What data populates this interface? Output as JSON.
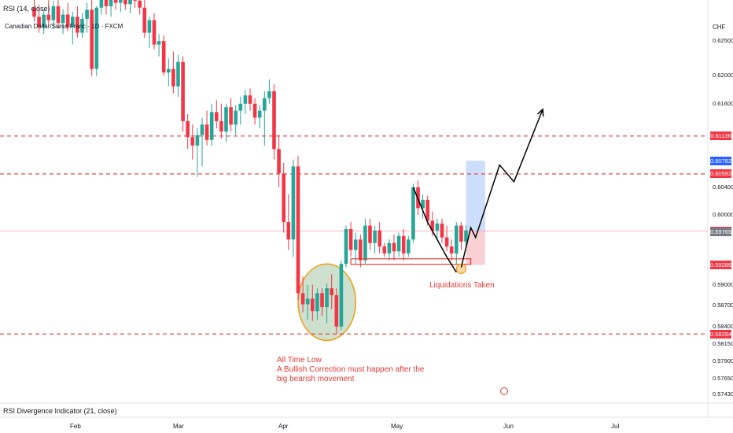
{
  "header": {
    "rsi_pane_title": "RSI (14, close)",
    "symbol_title": "Canadian Dollar/Swiss Franc · 1D · FXCM",
    "currency": "CHF",
    "divergence_pane_title": "RSI Divergence Indicator (21, close)"
  },
  "colors": {
    "up": "#26a69a",
    "down": "#f23645",
    "level_line": "#e53935",
    "target_zone": "#bcd3fb",
    "stop_zone": "#f8c5c9",
    "circle_fill": "#a5c8a6",
    "circle_stroke": "#f39c12",
    "blue_tag": "#2962ff"
  },
  "annotations": {
    "all_time_low": "All Time Low",
    "correction_line1": "A Bullish Correction must happen after the",
    "correction_line2": "big bearish movement",
    "liquidations": "Liquidations Taken"
  },
  "chart_data": {
    "type": "candlestick",
    "title": "Canadian Dollar/Swiss Franc · 1D · FXCM",
    "x_tick_labels": [
      "Feb",
      "Mar",
      "Apr",
      "May",
      "Jun",
      "Jul"
    ],
    "y_tick_labels": [
      "0.62500",
      "0.62000",
      "0.61600",
      "0.60400",
      "0.60000",
      "0.59000",
      "0.58700",
      "0.58400",
      "0.58150",
      "0.57900",
      "0.57650",
      "0.57430"
    ],
    "ylim": [
      0.5738,
      0.6309
    ],
    "horizontal_levels": [
      0.61136,
      0.60592,
      0.58294
    ],
    "price_tags": [
      {
        "label": "0.61136",
        "value": 0.61136,
        "kind": "red"
      },
      {
        "label": "0.60782",
        "value": 0.60782,
        "kind": "blue"
      },
      {
        "label": "0.60592",
        "value": 0.60592,
        "kind": "red"
      },
      {
        "label": "0.59774",
        "value": 0.59774,
        "kind": "red"
      },
      {
        "label": "0.59765",
        "value": 0.59765,
        "kind": "gray"
      },
      {
        "label": "0.59286",
        "value": 0.59286,
        "kind": "red"
      },
      {
        "label": "0.58294",
        "value": 0.58294,
        "kind": "red"
      }
    ],
    "current_price": 0.59774,
    "candles": [
      {
        "o": 0.6298,
        "h": 0.6312,
        "l": 0.6278,
        "c": 0.6285
      },
      {
        "o": 0.6285,
        "h": 0.6302,
        "l": 0.6262,
        "c": 0.627
      },
      {
        "o": 0.627,
        "h": 0.6295,
        "l": 0.626,
        "c": 0.6288
      },
      {
        "o": 0.6288,
        "h": 0.631,
        "l": 0.6272,
        "c": 0.628
      },
      {
        "o": 0.628,
        "h": 0.6308,
        "l": 0.6268,
        "c": 0.63
      },
      {
        "o": 0.63,
        "h": 0.6312,
        "l": 0.6268,
        "c": 0.6276
      },
      {
        "o": 0.6276,
        "h": 0.6296,
        "l": 0.626,
        "c": 0.6288
      },
      {
        "o": 0.6288,
        "h": 0.6305,
        "l": 0.6264,
        "c": 0.627
      },
      {
        "o": 0.627,
        "h": 0.6292,
        "l": 0.6245,
        "c": 0.6285
      },
      {
        "o": 0.6285,
        "h": 0.63,
        "l": 0.6255,
        "c": 0.6262
      },
      {
        "o": 0.6262,
        "h": 0.629,
        "l": 0.6255,
        "c": 0.6282
      },
      {
        "o": 0.6282,
        "h": 0.6305,
        "l": 0.6262,
        "c": 0.6295
      },
      {
        "o": 0.6295,
        "h": 0.631,
        "l": 0.62,
        "c": 0.621
      },
      {
        "o": 0.621,
        "h": 0.63,
        "l": 0.62,
        "c": 0.6298
      },
      {
        "o": 0.6298,
        "h": 0.6318,
        "l": 0.6288,
        "c": 0.631
      },
      {
        "o": 0.631,
        "h": 0.6318,
        "l": 0.6288,
        "c": 0.63
      },
      {
        "o": 0.63,
        "h": 0.6318,
        "l": 0.6285,
        "c": 0.6312
      },
      {
        "o": 0.6312,
        "h": 0.632,
        "l": 0.6295,
        "c": 0.6305
      },
      {
        "o": 0.6305,
        "h": 0.6318,
        "l": 0.6292,
        "c": 0.6312
      },
      {
        "o": 0.6312,
        "h": 0.632,
        "l": 0.6295,
        "c": 0.6303
      },
      {
        "o": 0.6303,
        "h": 0.6318,
        "l": 0.629,
        "c": 0.6314
      },
      {
        "o": 0.6314,
        "h": 0.632,
        "l": 0.6298,
        "c": 0.6308
      },
      {
        "o": 0.6308,
        "h": 0.632,
        "l": 0.6288,
        "c": 0.6298
      },
      {
        "o": 0.6298,
        "h": 0.631,
        "l": 0.6255,
        "c": 0.6262
      },
      {
        "o": 0.6262,
        "h": 0.6285,
        "l": 0.624,
        "c": 0.628
      },
      {
        "o": 0.628,
        "h": 0.629,
        "l": 0.6238,
        "c": 0.6245
      },
      {
        "o": 0.6245,
        "h": 0.626,
        "l": 0.6228,
        "c": 0.625
      },
      {
        "o": 0.625,
        "h": 0.6258,
        "l": 0.62,
        "c": 0.6205
      },
      {
        "o": 0.6205,
        "h": 0.6225,
        "l": 0.6185,
        "c": 0.621
      },
      {
        "o": 0.621,
        "h": 0.6235,
        "l": 0.6175,
        "c": 0.6185
      },
      {
        "o": 0.6185,
        "h": 0.623,
        "l": 0.617,
        "c": 0.622
      },
      {
        "o": 0.622,
        "h": 0.6228,
        "l": 0.612,
        "c": 0.6135
      },
      {
        "o": 0.6135,
        "h": 0.6145,
        "l": 0.6095,
        "c": 0.6112
      },
      {
        "o": 0.6112,
        "h": 0.613,
        "l": 0.608,
        "c": 0.61
      },
      {
        "o": 0.61,
        "h": 0.6125,
        "l": 0.6055,
        "c": 0.6115
      },
      {
        "o": 0.6115,
        "h": 0.614,
        "l": 0.607,
        "c": 0.613
      },
      {
        "o": 0.613,
        "h": 0.615,
        "l": 0.61,
        "c": 0.6108
      },
      {
        "o": 0.6108,
        "h": 0.616,
        "l": 0.61,
        "c": 0.6148
      },
      {
        "o": 0.6148,
        "h": 0.6165,
        "l": 0.6125,
        "c": 0.6135
      },
      {
        "o": 0.6135,
        "h": 0.616,
        "l": 0.611,
        "c": 0.612
      },
      {
        "o": 0.612,
        "h": 0.616,
        "l": 0.6105,
        "c": 0.6155
      },
      {
        "o": 0.6155,
        "h": 0.6168,
        "l": 0.612,
        "c": 0.613
      },
      {
        "o": 0.613,
        "h": 0.6158,
        "l": 0.6115,
        "c": 0.615
      },
      {
        "o": 0.615,
        "h": 0.617,
        "l": 0.613,
        "c": 0.616
      },
      {
        "o": 0.616,
        "h": 0.618,
        "l": 0.6145,
        "c": 0.6172
      },
      {
        "o": 0.6172,
        "h": 0.6182,
        "l": 0.615,
        "c": 0.616
      },
      {
        "o": 0.616,
        "h": 0.6168,
        "l": 0.613,
        "c": 0.614
      },
      {
        "o": 0.614,
        "h": 0.6158,
        "l": 0.6125,
        "c": 0.615
      },
      {
        "o": 0.615,
        "h": 0.6178,
        "l": 0.61,
        "c": 0.6168
      },
      {
        "o": 0.6168,
        "h": 0.6195,
        "l": 0.616,
        "c": 0.6178
      },
      {
        "o": 0.6178,
        "h": 0.6188,
        "l": 0.608,
        "c": 0.6095
      },
      {
        "o": 0.6095,
        "h": 0.6115,
        "l": 0.604,
        "c": 0.606
      },
      {
        "o": 0.606,
        "h": 0.6075,
        "l": 0.5975,
        "c": 0.599
      },
      {
        "o": 0.599,
        "h": 0.603,
        "l": 0.595,
        "c": 0.5965
      },
      {
        "o": 0.5965,
        "h": 0.608,
        "l": 0.594,
        "c": 0.607
      },
      {
        "o": 0.607,
        "h": 0.6085,
        "l": 0.5878,
        "c": 0.5888
      },
      {
        "o": 0.5888,
        "h": 0.5912,
        "l": 0.586,
        "c": 0.5872
      },
      {
        "o": 0.5872,
        "h": 0.59,
        "l": 0.585,
        "c": 0.588
      },
      {
        "o": 0.588,
        "h": 0.59,
        "l": 0.5848,
        "c": 0.5862
      },
      {
        "o": 0.5862,
        "h": 0.5895,
        "l": 0.585,
        "c": 0.5888
      },
      {
        "o": 0.5888,
        "h": 0.5895,
        "l": 0.5855,
        "c": 0.5868
      },
      {
        "o": 0.5868,
        "h": 0.5902,
        "l": 0.5845,
        "c": 0.5895
      },
      {
        "o": 0.5895,
        "h": 0.5915,
        "l": 0.5865,
        "c": 0.5885
      },
      {
        "o": 0.5885,
        "h": 0.5895,
        "l": 0.583,
        "c": 0.584
      },
      {
        "o": 0.584,
        "h": 0.5935,
        "l": 0.5835,
        "c": 0.593
      },
      {
        "o": 0.593,
        "h": 0.5985,
        "l": 0.5925,
        "c": 0.598
      },
      {
        "o": 0.598,
        "h": 0.599,
        "l": 0.594,
        "c": 0.595
      },
      {
        "o": 0.595,
        "h": 0.5975,
        "l": 0.593,
        "c": 0.5965
      },
      {
        "o": 0.5965,
        "h": 0.5972,
        "l": 0.5925,
        "c": 0.5935
      },
      {
        "o": 0.5935,
        "h": 0.5995,
        "l": 0.593,
        "c": 0.5985
      },
      {
        "o": 0.5985,
        "h": 0.5995,
        "l": 0.595,
        "c": 0.596
      },
      {
        "o": 0.596,
        "h": 0.5985,
        "l": 0.5945,
        "c": 0.5978
      },
      {
        "o": 0.5978,
        "h": 0.599,
        "l": 0.5945,
        "c": 0.5955
      },
      {
        "o": 0.5955,
        "h": 0.596,
        "l": 0.594,
        "c": 0.5945
      },
      {
        "o": 0.5945,
        "h": 0.5965,
        "l": 0.5935,
        "c": 0.596
      },
      {
        "o": 0.596,
        "h": 0.5972,
        "l": 0.5935,
        "c": 0.5948
      },
      {
        "o": 0.5948,
        "h": 0.5975,
        "l": 0.594,
        "c": 0.597
      },
      {
        "o": 0.597,
        "h": 0.598,
        "l": 0.5935,
        "c": 0.5945
      },
      {
        "o": 0.5945,
        "h": 0.597,
        "l": 0.594,
        "c": 0.5965
      },
      {
        "o": 0.5965,
        "h": 0.6045,
        "l": 0.596,
        "c": 0.604
      },
      {
        "o": 0.604,
        "h": 0.605,
        "l": 0.6,
        "c": 0.601
      },
      {
        "o": 0.601,
        "h": 0.603,
        "l": 0.5995,
        "c": 0.6022
      },
      {
        "o": 0.6022,
        "h": 0.6028,
        "l": 0.5985,
        "c": 0.5992
      },
      {
        "o": 0.5992,
        "h": 0.6005,
        "l": 0.597,
        "c": 0.5978
      },
      {
        "o": 0.5978,
        "h": 0.5995,
        "l": 0.5965,
        "c": 0.5988
      },
      {
        "o": 0.5988,
        "h": 0.5995,
        "l": 0.596,
        "c": 0.5968
      },
      {
        "o": 0.5968,
        "h": 0.5985,
        "l": 0.5948,
        "c": 0.5955
      },
      {
        "o": 0.5955,
        "h": 0.5965,
        "l": 0.5935,
        "c": 0.5945
      },
      {
        "o": 0.5945,
        "h": 0.599,
        "l": 0.593,
        "c": 0.5985
      },
      {
        "o": 0.5985,
        "h": 0.599,
        "l": 0.595,
        "c": 0.5962
      },
      {
        "o": 0.5962,
        "h": 0.5985,
        "l": 0.5955,
        "c": 0.5978
      }
    ],
    "projection_path": [
      {
        "i": 89,
        "price": 0.5925
      },
      {
        "i": 91,
        "price": 0.5982
      },
      {
        "i": 92,
        "price": 0.5968
      },
      {
        "i": 97,
        "price": 0.6072
      },
      {
        "i": 100,
        "price": 0.6048
      },
      {
        "i": 106,
        "price": 0.6152
      }
    ],
    "trend_path": [
      {
        "i": 79,
        "price": 0.604
      },
      {
        "i": 82,
        "price": 0.599
      },
      {
        "i": 86,
        "price": 0.594
      },
      {
        "i": 88,
        "price": 0.5918
      }
    ],
    "target_zone": {
      "i_from": 90,
      "i_to": 94,
      "top": 0.60782,
      "bottom": 0.59774
    },
    "stop_zone": {
      "i_from": 90,
      "i_to": 94,
      "top": 0.59774,
      "bottom": 0.59286
    },
    "liquidity_box": {
      "i_from": 66,
      "i_to": 91,
      "top": 0.5935,
      "bottom": 0.5928
    },
    "liquidation_marker": {
      "i": 89,
      "price": 0.5923
    },
    "all_time_low_zone": {
      "i_from": 55,
      "i_to": 67,
      "top": 0.593,
      "bottom": 0.582
    }
  }
}
